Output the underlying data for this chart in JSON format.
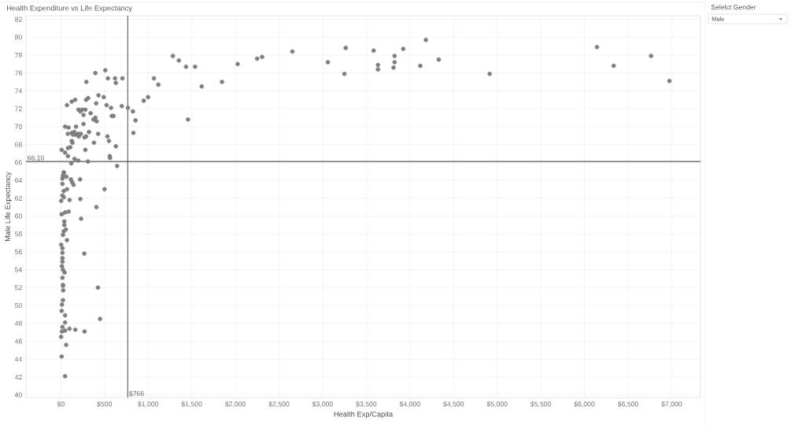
{
  "chart_data": {
    "type": "scatter",
    "title": "Health Expenditure vs Life Expectancy",
    "xlabel": "Health Exp/Capita",
    "ylabel": "Male Life Expectancy",
    "x": [
      1117,
      1283,
      1352,
      1434,
      1538,
      1614,
      1457,
      1846,
      2026,
      2249,
      2306,
      2653,
      3060,
      3264,
      3249,
      3584,
      3634,
      3634,
      3812,
      3824,
      3824,
      3923,
      4119,
      4183,
      4330,
      4914,
      6143,
      6335,
      6763,
      6974,
      395,
      509,
      539,
      621,
      705,
      630,
      292,
      1066,
      431,
      491,
      1000,
      949,
      313,
      289,
      163,
      124,
      70,
      404,
      524,
      698,
      575,
      768,
      825,
      201,
      244,
      280,
      223,
      341,
      259,
      584,
      603,
      395,
      373,
      409,
      855,
      259,
      48,
      88,
      174,
      322,
      79,
      124,
      154,
      138,
      169,
      199,
      229,
      205,
      289,
      271,
      427,
      533,
      831,
      124,
      133,
      379,
      551,
      630,
      9,
      48,
      81,
      108,
      280,
      81,
      560,
      563,
      156,
      199,
      120,
      310,
      644,
      33,
      33,
      24,
      63,
      18,
      115,
      220,
      129,
      145,
      18,
      70,
      33,
      500,
      18,
      33,
      99,
      3,
      223,
      407,
      88,
      48,
      9,
      232,
      39,
      39,
      57,
      33,
      24,
      70,
      3,
      18,
      268,
      18,
      18,
      18,
      12,
      24,
      42,
      18,
      24,
      24,
      27,
      425,
      24,
      12,
      9,
      48,
      449,
      48,
      18,
      99,
      165,
      48,
      12,
      271,
      3,
      61,
      9,
      48
    ],
    "values": [
      74.7,
      77.9,
      77.4,
      76.7,
      76.7,
      74.5,
      70.8,
      75.0,
      77.0,
      77.6,
      77.8,
      78.4,
      77.2,
      78.8,
      75.9,
      78.5,
      76.9,
      76.4,
      76.6,
      77.9,
      77.2,
      78.7,
      76.8,
      79.7,
      77.5,
      75.9,
      78.9,
      76.8,
      77.9,
      75.1,
      76.0,
      76.3,
      75.4,
      75.4,
      75.4,
      74.9,
      75.0,
      75.4,
      73.5,
      73.3,
      73.3,
      72.9,
      73.2,
      73.0,
      73.0,
      72.8,
      72.4,
      72.6,
      72.4,
      72.3,
      72.1,
      72.1,
      71.7,
      71.9,
      71.9,
      71.9,
      71.7,
      71.5,
      71.3,
      71.2,
      71.2,
      71.0,
      70.8,
      70.6,
      70.7,
      70.3,
      70.0,
      69.9,
      70.0,
      69.4,
      69.2,
      69.3,
      69.4,
      69.1,
      69.1,
      69.2,
      69.2,
      68.9,
      68.9,
      68.8,
      69.2,
      68.9,
      69.3,
      68.4,
      68.2,
      68.2,
      68.4,
      67.8,
      67.4,
      67.1,
      67.6,
      67.7,
      67.4,
      66.7,
      66.7,
      66.5,
      66.4,
      66.2,
      65.9,
      66.1,
      65.6,
      64.9,
      64.8,
      64.5,
      64.4,
      64.2,
      64.1,
      64.1,
      63.8,
      63.5,
      63.6,
      63.0,
      62.8,
      63.0,
      62.3,
      62.1,
      61.8,
      61.7,
      61.9,
      61.0,
      60.5,
      60.4,
      60.2,
      59.7,
      59.4,
      59.0,
      58.5,
      58.3,
      57.9,
      57.3,
      56.8,
      56.4,
      55.8,
      55.9,
      55.3,
      54.9,
      54.4,
      54.0,
      53.7,
      53.1,
      52.3,
      52.2,
      51.7,
      52.0,
      50.6,
      50.1,
      49.4,
      48.9,
      48.5,
      48.1,
      47.6,
      47.4,
      47.3,
      47.2,
      47.1,
      47.1,
      46.5,
      45.6,
      44.3,
      42.1
    ],
    "color": "#7f7f7f",
    "marker": "circle",
    "grid": true,
    "xlim": [
      -400,
      7330
    ],
    "ylim": [
      39.7,
      82.4
    ],
    "xticks": [
      {
        "value": 0,
        "label": "$0"
      },
      {
        "value": 500,
        "label": "$500"
      },
      {
        "value": 1000,
        "label": "$1,000"
      },
      {
        "value": 1500,
        "label": "$1,500"
      },
      {
        "value": 2000,
        "label": "$2,000"
      },
      {
        "value": 2500,
        "label": "$2,500"
      },
      {
        "value": 3000,
        "label": "$3,000"
      },
      {
        "value": 3500,
        "label": "$3,500"
      },
      {
        "value": 4000,
        "label": "$4,000"
      },
      {
        "value": 4500,
        "label": "$4,500"
      },
      {
        "value": 5000,
        "label": "$5,000"
      },
      {
        "value": 5500,
        "label": "$5,500"
      },
      {
        "value": 6000,
        "label": "$6,000"
      },
      {
        "value": 6500,
        "label": "$6,500"
      },
      {
        "value": 7000,
        "label": "$7,000"
      }
    ],
    "yticks": [
      40,
      42,
      44,
      46,
      48,
      50,
      52,
      54,
      56,
      58,
      60,
      62,
      64,
      66,
      68,
      70,
      72,
      74,
      76,
      78,
      80,
      82
    ],
    "ref_lines": [
      {
        "axis": "x",
        "value": 766,
        "label": "$766",
        "color": "#555555"
      },
      {
        "axis": "y",
        "value": 66.1,
        "label": "66.10",
        "color": "#555555"
      }
    ],
    "annotations": [
      "Selelct Gender",
      "Male"
    ]
  }
}
